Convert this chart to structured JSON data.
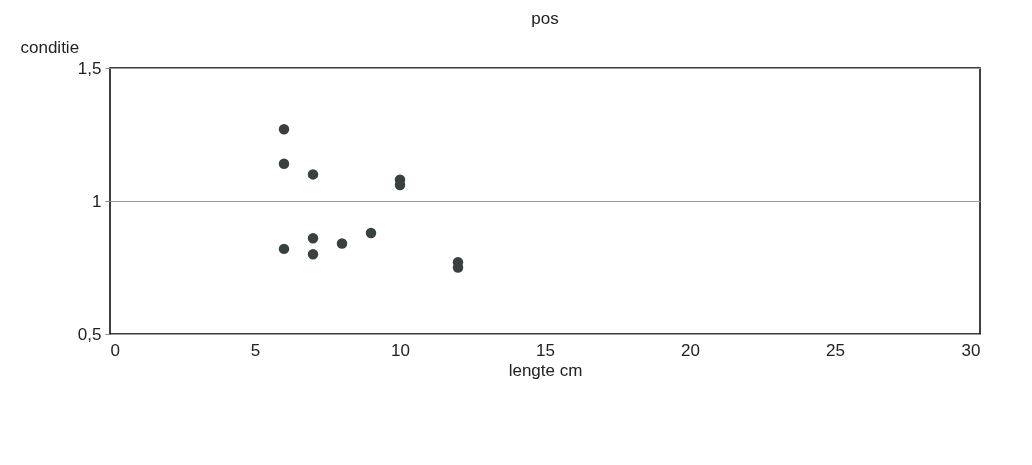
{
  "chart_data": {
    "type": "scatter",
    "title": "pos",
    "xlabel": "lengte cm",
    "ylabel": "conditie",
    "x": [
      6,
      6,
      7,
      10,
      10,
      6,
      7,
      7,
      8,
      9,
      12,
      12
    ],
    "values": [
      1.27,
      1.14,
      1.1,
      1.08,
      1.06,
      0.82,
      0.86,
      0.8,
      0.84,
      0.88,
      0.77,
      0.75
    ],
    "color": "#3a3f3f",
    "marker": "circle",
    "grid": "y",
    "xlim": [
      0,
      30
    ],
    "xticks": [
      0,
      5,
      10,
      15,
      20,
      25,
      30
    ],
    "ylim": [
      0.5,
      1.5
    ],
    "yticks": [
      {
        "value": 0.5,
        "label": "0,5"
      },
      {
        "value": 1,
        "label": "1"
      },
      {
        "value": 1.5,
        "label": "1,5"
      }
    ]
  }
}
